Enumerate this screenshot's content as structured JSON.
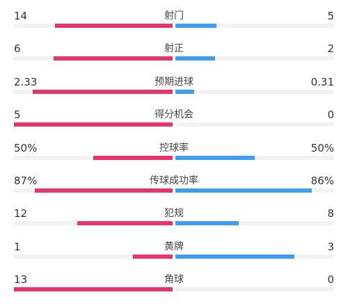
{
  "colors": {
    "home": "#e8336e",
    "away": "#3d9ef0",
    "track": "#f2f2f2"
  },
  "stats": [
    {
      "label": "射门",
      "home": "14",
      "away": "5",
      "home_share": 0.74,
      "away_share": 0.26
    },
    {
      "label": "射正",
      "home": "6",
      "away": "2",
      "home_share": 0.75,
      "away_share": 0.25
    },
    {
      "label": "预期进球",
      "home": "2.33",
      "away": "0.31",
      "home_share": 0.88,
      "away_share": 0.12
    },
    {
      "label": "得分机会",
      "home": "5",
      "away": "0",
      "home_share": 1.0,
      "away_share": 0.0
    },
    {
      "label": "控球率",
      "home": "50%",
      "away": "50%",
      "home_share": 0.5,
      "away_share": 0.5
    },
    {
      "label": "传球成功率",
      "home": "87%",
      "away": "86%",
      "home_share": 0.87,
      "away_share": 0.86
    },
    {
      "label": "犯规",
      "home": "12",
      "away": "8",
      "home_share": 0.6,
      "away_share": 0.4
    },
    {
      "label": "黄牌",
      "home": "1",
      "away": "3",
      "home_share": 0.25,
      "away_share": 0.75
    },
    {
      "label": "角球",
      "home": "13",
      "away": "0",
      "home_share": 1.0,
      "away_share": 0.0
    }
  ]
}
